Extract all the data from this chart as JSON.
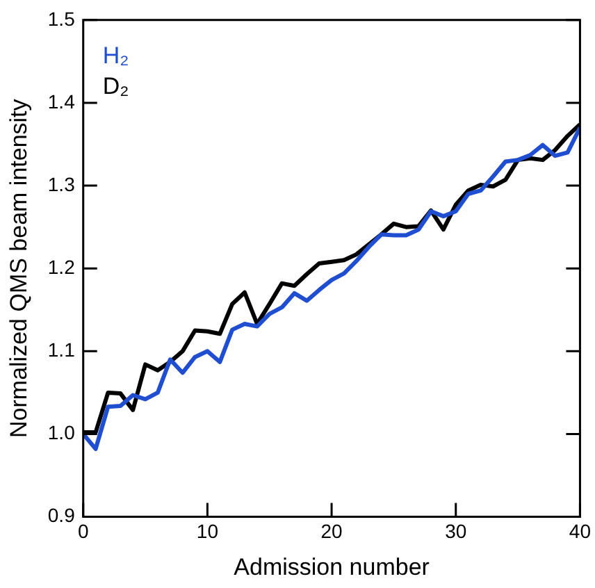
{
  "chart_data": {
    "type": "line",
    "xlabel": "Admission number",
    "ylabel": "Normalized QMS beam intensity",
    "x": [
      0,
      1,
      2,
      3,
      4,
      5,
      6,
      7,
      8,
      9,
      10,
      11,
      12,
      13,
      14,
      15,
      16,
      17,
      18,
      19,
      20,
      21,
      22,
      23,
      24,
      25,
      26,
      27,
      28,
      29,
      30,
      31,
      32,
      33,
      34,
      35,
      36,
      37,
      38,
      39,
      40
    ],
    "series": [
      {
        "name": "H₂",
        "color": "#1f4fd0",
        "values": [
          1.0,
          0.982,
          1.033,
          1.034,
          1.047,
          1.042,
          1.05,
          1.09,
          1.074,
          1.093,
          1.1,
          1.087,
          1.126,
          1.133,
          1.13,
          1.145,
          1.153,
          1.17,
          1.161,
          1.174,
          1.186,
          1.194,
          1.209,
          1.226,
          1.241,
          1.24,
          1.24,
          1.247,
          1.269,
          1.263,
          1.269,
          1.29,
          1.294,
          1.311,
          1.329,
          1.331,
          1.337,
          1.349,
          1.336,
          1.34,
          1.37
        ]
      },
      {
        "name": "D₂",
        "color": "#000000",
        "values": [
          1.002,
          1.002,
          1.05,
          1.049,
          1.029,
          1.084,
          1.077,
          1.087,
          1.1,
          1.125,
          1.124,
          1.121,
          1.157,
          1.171,
          1.133,
          1.157,
          1.182,
          1.179,
          1.193,
          1.206,
          1.208,
          1.21,
          1.217,
          1.229,
          1.241,
          1.254,
          1.25,
          1.251,
          1.27,
          1.247,
          1.277,
          1.294,
          1.301,
          1.299,
          1.307,
          1.331,
          1.333,
          1.331,
          1.343,
          1.36,
          1.374
        ]
      }
    ],
    "xlim": [
      0,
      40
    ],
    "xticks": [
      0,
      10,
      20,
      30,
      40
    ],
    "ylim": [
      0.9,
      1.5
    ],
    "yticks": [
      0.9,
      {
        "value": 1,
        "label": "1.0"
      },
      1.1,
      1.2,
      1.3,
      1.4,
      1.5
    ],
    "grid": false,
    "legend": "top left",
    "marker": "none",
    "line_style": "solid"
  }
}
